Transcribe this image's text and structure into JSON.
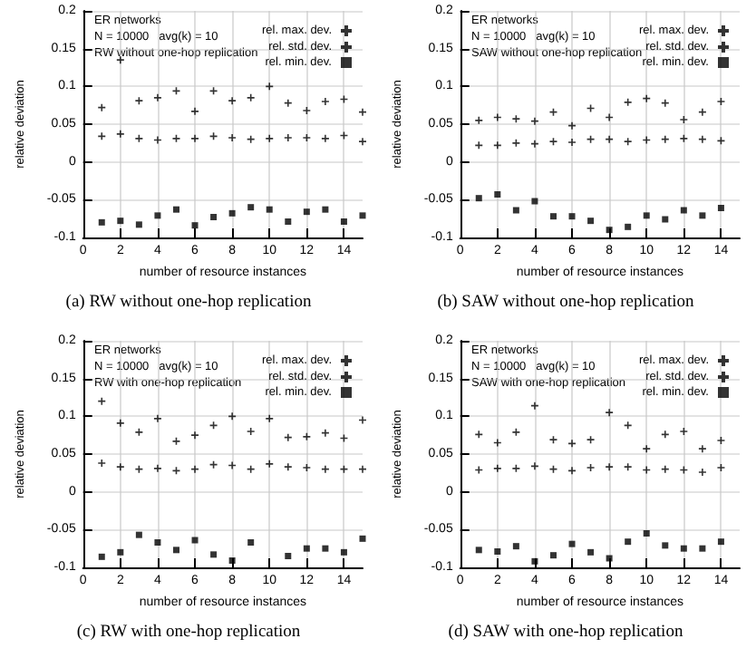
{
  "chart_data": [
    {
      "type": "scatter",
      "title": "(a) RW without one-hop replication",
      "xlabel": "number of resource instances",
      "ylabel": "relative deviation",
      "annotations": [
        "ER networks",
        "N = 10000   avg(k) = 10",
        "RW without one-hop replication"
      ],
      "x": [
        1,
        2,
        3,
        4,
        5,
        6,
        7,
        8,
        9,
        10,
        11,
        12,
        13,
        14,
        15
      ],
      "xlim": [
        0,
        15
      ],
      "xticks": [
        0,
        2,
        4,
        6,
        8,
        10,
        12,
        14
      ],
      "ylim": [
        -0.1,
        0.2
      ],
      "yticks": [
        -0.1,
        -0.05,
        0,
        0.05,
        0.1,
        0.15,
        0.2
      ],
      "grid": true,
      "legend": "top right",
      "series": [
        {
          "name": "rel. max. dev.",
          "color": "#000000",
          "marker": "cross",
          "values": [
            0.072,
            0.135,
            0.081,
            0.085,
            0.094,
            0.067,
            0.094,
            0.081,
            0.085,
            0.1,
            0.078,
            0.068,
            0.08,
            0.083,
            0.066
          ]
        },
        {
          "name": "rel. std. dev.",
          "color": "#000000",
          "marker": "cross",
          "values": [
            0.034,
            0.037,
            0.031,
            0.029,
            0.031,
            0.031,
            0.034,
            0.032,
            0.03,
            0.031,
            0.032,
            0.032,
            0.031,
            0.035,
            0.027
          ]
        },
        {
          "name": "rel. min. dev.",
          "color": "#000000",
          "marker": "square",
          "values": [
            -0.08,
            -0.078,
            -0.083,
            -0.071,
            -0.063,
            -0.084,
            -0.073,
            -0.068,
            -0.06,
            -0.063,
            -0.079,
            -0.066,
            -0.063,
            -0.079,
            -0.071
          ]
        }
      ]
    },
    {
      "type": "scatter",
      "title": "(b) SAW without one-hop replication",
      "xlabel": "number of resource instances",
      "ylabel": "relative deviation",
      "annotations": [
        "ER networks",
        "N = 10000   avg(k) = 10",
        "SAW without one-hop replication"
      ],
      "x": [
        1,
        2,
        3,
        4,
        5,
        6,
        7,
        8,
        9,
        10,
        11,
        12,
        13,
        14
      ],
      "xlim": [
        0,
        15
      ],
      "xticks": [
        0,
        2,
        4,
        6,
        8,
        10,
        12,
        14
      ],
      "ylim": [
        -0.1,
        0.2
      ],
      "yticks": [
        -0.1,
        -0.05,
        0,
        0.05,
        0.1,
        0.15,
        0.2
      ],
      "grid": true,
      "legend": "top right",
      "series": [
        {
          "name": "rel. max. dev.",
          "color": "#000000",
          "marker": "cross",
          "values": [
            0.055,
            0.059,
            0.057,
            0.054,
            0.066,
            0.048,
            0.071,
            0.059,
            0.079,
            0.084,
            0.078,
            0.056,
            0.066,
            0.08
          ]
        },
        {
          "name": "rel. std. dev.",
          "color": "#000000",
          "marker": "cross",
          "values": [
            0.022,
            0.022,
            0.025,
            0.024,
            0.027,
            0.026,
            0.03,
            0.03,
            0.027,
            0.029,
            0.03,
            0.031,
            0.03,
            0.028
          ]
        },
        {
          "name": "rel. min. dev.",
          "color": "#000000",
          "marker": "square",
          "values": [
            -0.048,
            -0.043,
            -0.064,
            -0.052,
            -0.072,
            -0.072,
            -0.078,
            -0.09,
            -0.086,
            -0.071,
            -0.076,
            -0.064,
            -0.071,
            -0.061
          ]
        }
      ]
    },
    {
      "type": "scatter",
      "title": "(c) RW with one-hop replication",
      "xlabel": "number of resource instances",
      "ylabel": "relative deviation",
      "annotations": [
        "ER networks",
        "N = 10000   avg(k) = 10",
        "RW with one-hop replication"
      ],
      "x": [
        1,
        2,
        3,
        4,
        5,
        6,
        7,
        8,
        9,
        10,
        11,
        12,
        13,
        14,
        15
      ],
      "xlim": [
        0,
        15
      ],
      "xticks": [
        0,
        2,
        4,
        6,
        8,
        10,
        12,
        14
      ],
      "ylim": [
        -0.1,
        0.2
      ],
      "yticks": [
        -0.1,
        -0.05,
        0,
        0.05,
        0.1,
        0.15,
        0.2
      ],
      "grid": true,
      "legend": "top right",
      "series": [
        {
          "name": "rel. max. dev.",
          "color": "#000000",
          "marker": "cross",
          "values": [
            0.12,
            0.091,
            0.079,
            0.097,
            0.067,
            0.075,
            0.088,
            0.1,
            0.08,
            0.097,
            0.072,
            0.073,
            0.078,
            0.071,
            0.095
          ]
        },
        {
          "name": "rel. std. dev.",
          "color": "#000000",
          "marker": "cross",
          "values": [
            0.038,
            0.033,
            0.03,
            0.031,
            0.028,
            0.03,
            0.036,
            0.035,
            0.03,
            0.037,
            0.033,
            0.032,
            0.03,
            0.03,
            0.03
          ]
        },
        {
          "name": "rel. min. dev.",
          "color": "#000000",
          "marker": "square",
          "values": [
            -0.086,
            -0.08,
            -0.057,
            -0.067,
            -0.077,
            -0.064,
            -0.083,
            -0.091,
            -0.067,
            null,
            -0.085,
            -0.075,
            -0.075,
            -0.08,
            -0.062
          ]
        }
      ]
    },
    {
      "type": "scatter",
      "title": "(d) SAW with one-hop replication",
      "xlabel": "number of resource instances",
      "ylabel": "relative deviation",
      "annotations": [
        "ER networks",
        "N = 10000   avg(k) = 10",
        "SAW with one-hop replication"
      ],
      "x": [
        1,
        2,
        3,
        4,
        5,
        6,
        7,
        8,
        9,
        10,
        11,
        12,
        13,
        14
      ],
      "xlim": [
        0,
        15
      ],
      "xticks": [
        0,
        2,
        4,
        6,
        8,
        10,
        12,
        14
      ],
      "ylim": [
        -0.1,
        0.2
      ],
      "yticks": [
        -0.1,
        -0.05,
        0,
        0.05,
        0.1,
        0.15,
        0.2
      ],
      "grid": true,
      "legend": "top right",
      "series": [
        {
          "name": "rel. max. dev.",
          "color": "#000000",
          "marker": "cross",
          "values": [
            0.076,
            0.065,
            0.079,
            0.114,
            0.069,
            0.064,
            0.069,
            0.105,
            0.088,
            0.057,
            0.076,
            0.08,
            0.057,
            0.068
          ]
        },
        {
          "name": "rel. std. dev.",
          "color": "#000000",
          "marker": "cross",
          "values": [
            0.029,
            0.031,
            0.031,
            0.034,
            0.03,
            0.028,
            0.032,
            0.033,
            0.033,
            0.029,
            0.03,
            0.029,
            0.026,
            0.032
          ]
        },
        {
          "name": "rel. min. dev.",
          "color": "#000000",
          "marker": "square",
          "values": [
            -0.077,
            -0.079,
            -0.072,
            -0.092,
            -0.084,
            -0.069,
            -0.08,
            -0.088,
            -0.066,
            -0.055,
            -0.071,
            -0.075,
            -0.075,
            -0.066
          ]
        }
      ]
    }
  ]
}
